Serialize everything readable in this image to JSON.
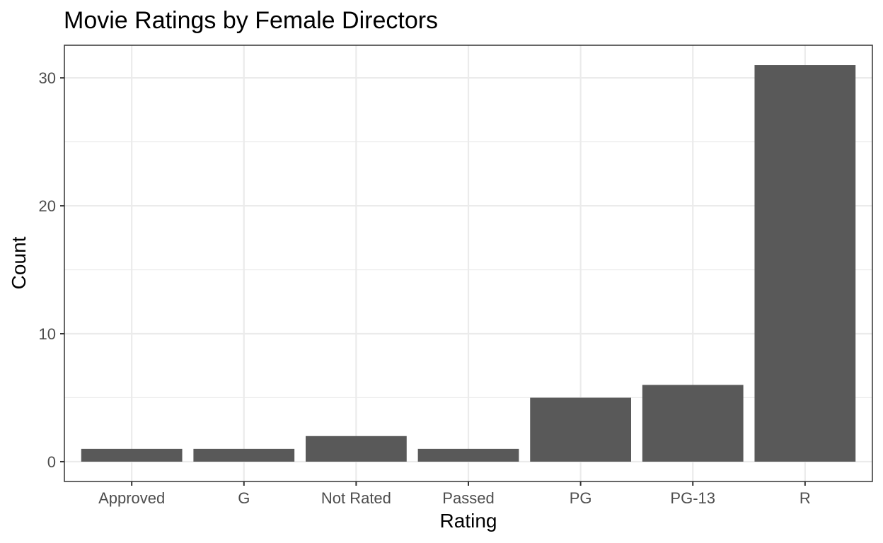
{
  "chart_data": {
    "type": "bar",
    "title": "Movie Ratings by Female Directors",
    "xlabel": "Rating",
    "ylabel": "Count",
    "categories": [
      "Approved",
      "G",
      "Not Rated",
      "Passed",
      "PG",
      "PG-13",
      "R"
    ],
    "values": [
      1,
      1,
      2,
      1,
      5,
      6,
      31
    ],
    "ylim": [
      -1.55,
      32.55
    ],
    "yticks": [
      0,
      10,
      20,
      30
    ],
    "ytick_labels": [
      "0",
      "10",
      "20",
      "30"
    ],
    "yminor": [
      5,
      15,
      25
    ],
    "bar_color": "#595959",
    "grid": true,
    "legend": "none"
  }
}
